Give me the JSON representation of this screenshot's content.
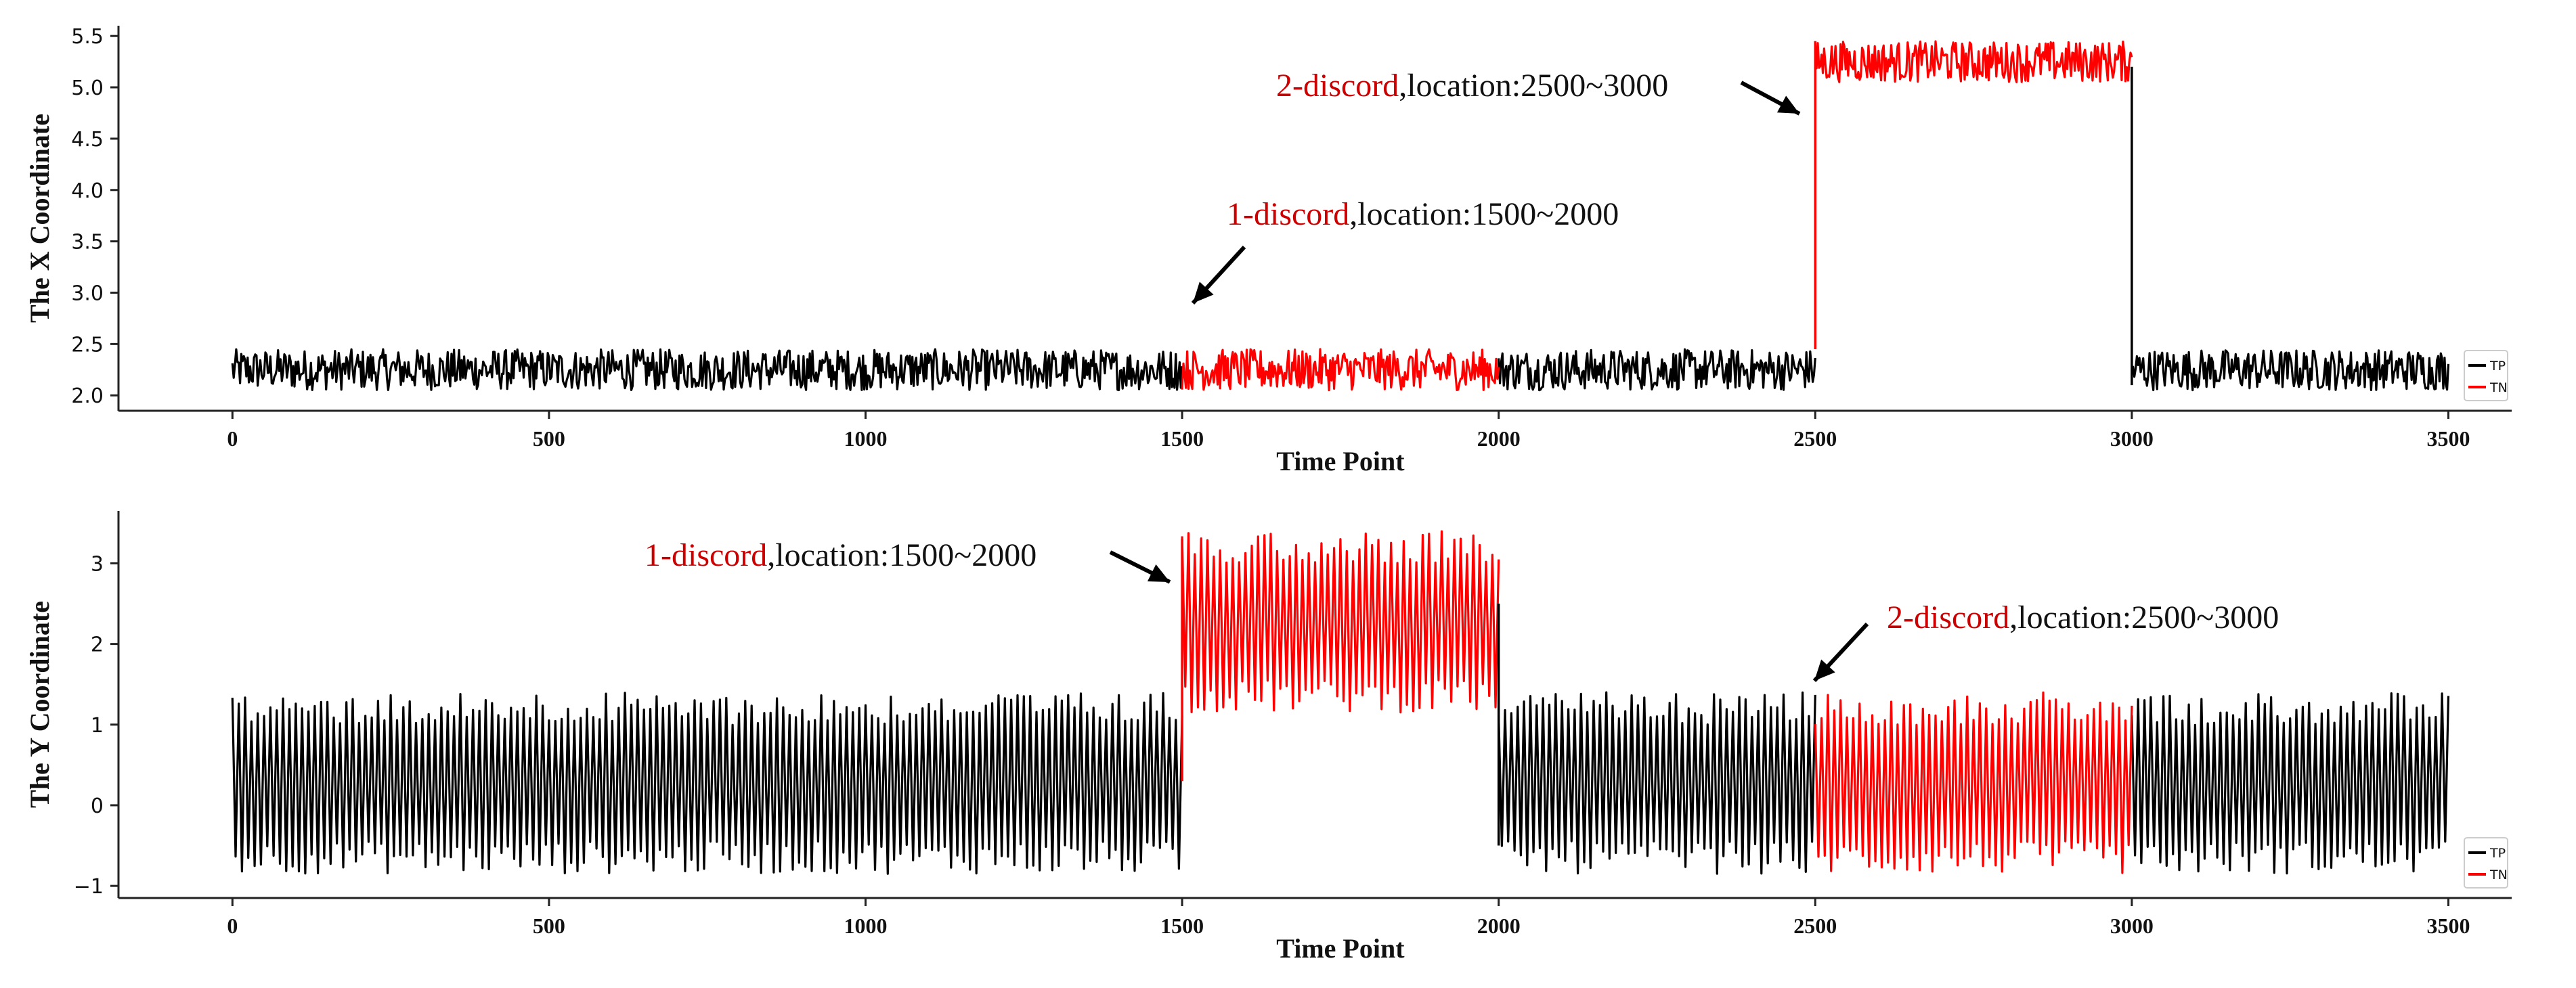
{
  "chart_data": [
    {
      "type": "line",
      "id": "x",
      "xlabel": "Time Point",
      "ylabel": "The X Coordinate",
      "xlim": [
        -180,
        3600
      ],
      "ylim": [
        1.85,
        5.6
      ],
      "xticks": [
        0,
        500,
        1000,
        1500,
        2000,
        2500,
        3000,
        3500
      ],
      "yticks": [
        2.0,
        2.5,
        3.0,
        3.5,
        4.0,
        4.5,
        5.0,
        5.5
      ],
      "yticklabels": [
        "2.0",
        "2.5",
        "3.0",
        "3.5",
        "4.0",
        "4.5",
        "5.0",
        "5.5"
      ],
      "series": [
        {
          "name": "TP",
          "color": "#000000",
          "segments": [
            {
              "start": 0,
              "end": 1500,
              "low": 2.05,
              "high": 2.45,
              "kind": "noise"
            },
            {
              "start": 2000,
              "end": 2500,
              "low": 2.05,
              "high": 2.45,
              "kind": "noise"
            },
            {
              "start": 3000,
              "end": 3500,
              "low": 2.05,
              "high": 2.45,
              "kind": "noise"
            }
          ]
        },
        {
          "name": "TN",
          "color": "#ff0000",
          "segments": [
            {
              "start": 1500,
              "end": 2000,
              "low": 2.05,
              "high": 2.45,
              "kind": "noise"
            },
            {
              "start": 2500,
              "end": 3000,
              "low": 5.05,
              "high": 5.45,
              "kind": "noise"
            }
          ]
        }
      ],
      "annotations": [
        {
          "label": "1-discord",
          "text": ",location:1500~2000",
          "point_x": 1500,
          "point_y": 2.9
        },
        {
          "label": "2-discord",
          "text": ",location:2500~3000",
          "point_x": 2490,
          "point_y": 4.8
        }
      ],
      "legend": {
        "position": "bottom-right",
        "entries": [
          "TP",
          "TN"
        ]
      }
    },
    {
      "type": "line",
      "id": "y",
      "xlabel": "Time Point",
      "ylabel": "The Y Coordinate",
      "xlim": [
        -180,
        3600
      ],
      "ylim": [
        -1.15,
        3.65
      ],
      "xticks": [
        0,
        500,
        1000,
        1500,
        2000,
        2500,
        3000,
        3500
      ],
      "yticks": [
        -1,
        0,
        1,
        2,
        3
      ],
      "yticklabels": [
        "−1",
        "0",
        "1",
        "2",
        "3"
      ],
      "series": [
        {
          "name": "TP",
          "color": "#000000",
          "segments": [
            {
              "start": 0,
              "end": 1500,
              "low": -0.85,
              "high": 1.4,
              "kind": "osc"
            },
            {
              "start": 2000,
              "end": 2500,
              "low": -0.85,
              "high": 1.4,
              "kind": "osc"
            },
            {
              "start": 3000,
              "end": 3500,
              "low": -0.85,
              "high": 1.4,
              "kind": "osc"
            }
          ]
        },
        {
          "name": "TN",
          "color": "#ff0000",
          "segments": [
            {
              "start": 1500,
              "end": 2000,
              "low": 1.15,
              "high": 3.4,
              "kind": "osc"
            },
            {
              "start": 2500,
              "end": 3000,
              "low": -0.85,
              "high": 1.4,
              "kind": "osc"
            }
          ]
        }
      ],
      "annotations": [
        {
          "label": "1-discord",
          "text": ",location:1500~2000",
          "point_x": 1490,
          "point_y": 2.75
        },
        {
          "label": "2-discord",
          "text": ",location:2500~3000",
          "point_x": 2500,
          "point_y": 1.55
        }
      ],
      "legend": {
        "position": "bottom-right",
        "entries": [
          "TP",
          "TN"
        ]
      }
    }
  ]
}
